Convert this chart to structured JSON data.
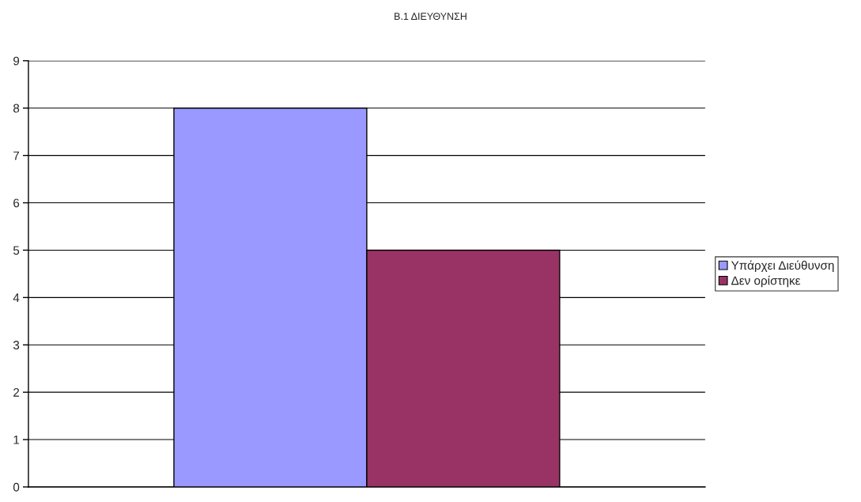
{
  "chart_data": {
    "type": "bar",
    "title": "B.1 ΔΙΕΥΘΥΝΣΗ",
    "categories": [
      null
    ],
    "series": [
      {
        "name": "Υπάρχει Διεύθυνση",
        "color": "#9999ff",
        "values": [
          8
        ]
      },
      {
        "name": "Δεν ορίστηκε",
        "color": "#993366",
        "values": [
          5
        ]
      }
    ],
    "ylim": [
      0,
      9
    ],
    "yticks": [
      0,
      1,
      2,
      3,
      4,
      5,
      6,
      7,
      8,
      9
    ],
    "grid": "y",
    "legend": "right"
  }
}
